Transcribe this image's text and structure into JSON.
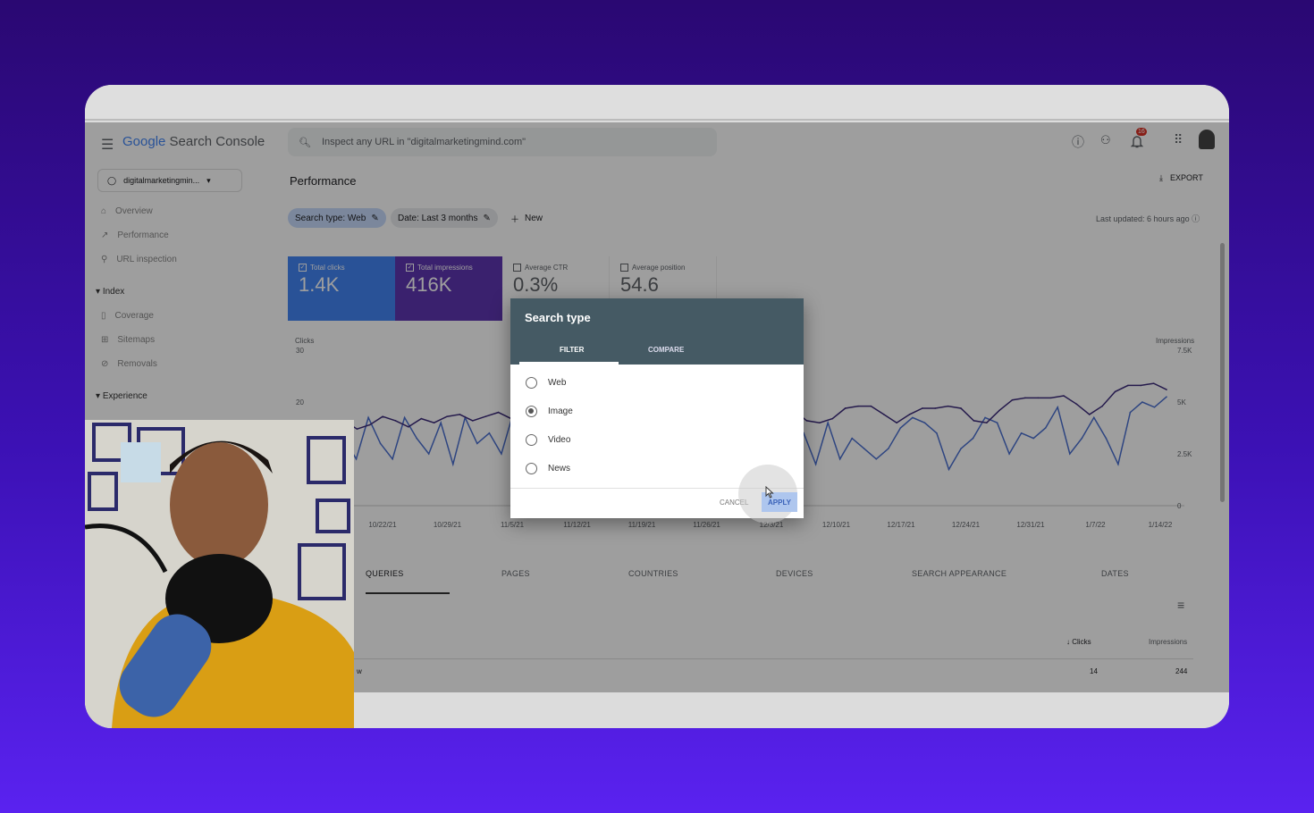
{
  "header": {
    "logo_google": "Google",
    "logo_product": "Search Console",
    "search_placeholder": "Inspect any URL in \"digitalmarketingmind.com\"",
    "notification_count": "16"
  },
  "sidebar": {
    "property": "digitalmarketingmin...",
    "items": [
      {
        "label": "Overview"
      },
      {
        "label": "Performance"
      },
      {
        "label": "URL inspection"
      }
    ],
    "index_section": "Index",
    "index_items": [
      {
        "label": "Coverage"
      },
      {
        "label": "Sitemaps"
      },
      {
        "label": "Removals"
      }
    ],
    "experience_section": "Experience"
  },
  "main": {
    "title": "Performance",
    "export_label": "EXPORT",
    "filters": {
      "search_type": "Search type: Web",
      "date": "Date: Last 3 months",
      "new": "New"
    },
    "last_updated": "Last updated: 6 hours ago",
    "metrics": [
      {
        "label": "Total clicks",
        "value": "1.4K",
        "checked": true,
        "color": "#4285f4"
      },
      {
        "label": "Total impressions",
        "value": "416K",
        "checked": true,
        "color": "#5e35b1"
      },
      {
        "label": "Average CTR",
        "value": "0.3%",
        "checked": false
      },
      {
        "label": "Average position",
        "value": "54.6",
        "checked": false
      }
    ],
    "tabs": [
      "QUERIES",
      "PAGES",
      "COUNTRIES",
      "DEVICES",
      "SEARCH APPEARANCE",
      "DATES"
    ],
    "table": {
      "headers": {
        "clicks": "Clicks",
        "impressions": "Impressions"
      },
      "rows": [
        {
          "query": "w",
          "clicks": "14",
          "impressions": "244"
        }
      ]
    }
  },
  "chart_data": {
    "type": "line",
    "left_axis_label": "Clicks",
    "right_axis_label": "Impressions",
    "left_ticks": [
      "30",
      "20"
    ],
    "right_ticks": [
      "7.5K",
      "5K",
      "2.5K",
      "0"
    ],
    "x_ticks": [
      "10/22/21",
      "10/29/21",
      "11/5/21",
      "11/12/21",
      "11/19/21",
      "11/26/21",
      "12/3/21",
      "12/10/21",
      "12/17/21",
      "12/24/21",
      "12/31/21",
      "1/7/22",
      "1/14/22"
    ],
    "ylim_clicks": [
      0,
      30
    ],
    "ylim_impressions": [
      0,
      7500
    ],
    "series": [
      {
        "name": "Clicks",
        "color": "#4a6fd0",
        "values": [
          13,
          9,
          17,
          12,
          9,
          17,
          13,
          10,
          16,
          8,
          17,
          12,
          14,
          10,
          18,
          11,
          16,
          14,
          13,
          11,
          16,
          14,
          12,
          16,
          10,
          17,
          15,
          13,
          14,
          18,
          17,
          15,
          12,
          8,
          12,
          6,
          9,
          12,
          14,
          8,
          16,
          9,
          13,
          11,
          9,
          11,
          15,
          17,
          16,
          14,
          7,
          11,
          13,
          17,
          16,
          10,
          14,
          13,
          15,
          19,
          10,
          13,
          17,
          13,
          8,
          18,
          20,
          19,
          21
        ]
      },
      {
        "name": "Impressions",
        "color": "#3b2a7a",
        "values": [
          4100,
          3700,
          3900,
          4300,
          4100,
          3800,
          4200,
          4000,
          4300,
          4400,
          4100,
          4300,
          4500,
          4200,
          4600,
          4400,
          4500,
          4300,
          4600,
          4700,
          4500,
          4600,
          4800,
          4700,
          5200,
          4900,
          4800,
          5100,
          5300,
          5000,
          4500,
          4800,
          4700,
          4900,
          4500,
          4600,
          4100,
          4000,
          4200,
          4700,
          4800,
          4800,
          4400,
          4000,
          4400,
          4700,
          4700,
          4800,
          4700,
          4100,
          4000,
          4600,
          5100,
          5200,
          5200,
          5200,
          5300,
          4900,
          4400,
          4800,
          5500,
          5800,
          5800,
          5900,
          5600
        ]
      }
    ]
  },
  "dialog": {
    "title": "Search type",
    "tabs": [
      "FILTER",
      "COMPARE"
    ],
    "active_tab": "FILTER",
    "options": [
      "Web",
      "Image",
      "Video",
      "News"
    ],
    "selected": "Image",
    "cancel": "CANCEL",
    "apply": "APPLY"
  }
}
